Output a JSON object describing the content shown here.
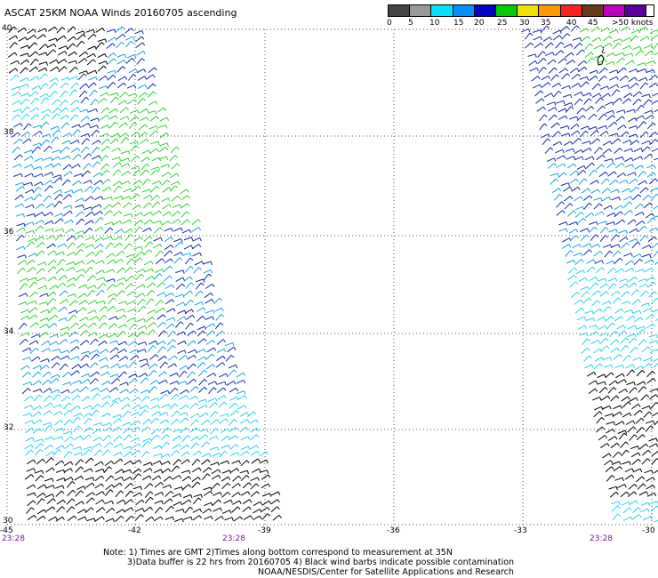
{
  "title": "ASCAT 25KM NOAA Winds 20160705 ascending",
  "legend": {
    "labels": [
      "0",
      "5",
      "10",
      "15",
      "20",
      "25",
      "30",
      "35",
      "40",
      "45",
      ">50 knots"
    ],
    "colors": [
      "#444444",
      "#9a9a9a",
      "#00e0ff",
      "#0090ff",
      "#0000c8",
      "#00cc00",
      "#f0e000",
      "#ff9900",
      "#ff2020",
      "#6a3a1a",
      "#c000c0",
      "#5a00a0"
    ]
  },
  "map": {
    "lat_labels": [
      "40",
      "38",
      "36",
      "34",
      "32",
      "30"
    ],
    "lon_labels": [
      "-45",
      "-42",
      "-39",
      "-36",
      "-33",
      "-30"
    ],
    "time_labels": [
      "23:28",
      "23:28",
      "23:28"
    ],
    "island_label": "¿"
  },
  "notes": {
    "line1": "Note: 1) Times are GMT 2)Times along bottom correspond to measurement at 35N",
    "line2": "3)Data buffer is 22 hrs from 20160705 4) Black wind barbs indicate possible contamination",
    "line3": "NOAA/NESDIS/Center for Satellite Applications and Research"
  },
  "colors": {
    "light_blue": "#19a0e6",
    "dark_blue": "#1428b4",
    "cyan": "#28d2f0",
    "green": "#32d232",
    "black": "#000000",
    "grid": "#555555",
    "time": "#7a1a9a"
  }
}
